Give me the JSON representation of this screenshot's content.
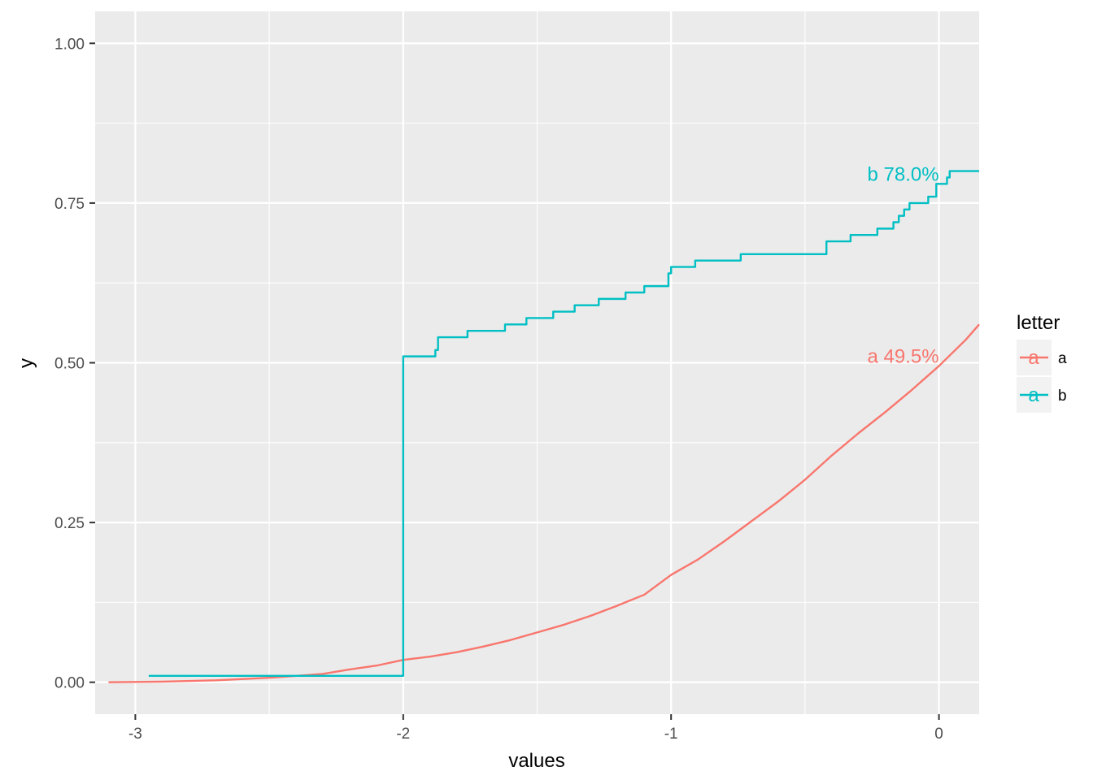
{
  "chart_data": {
    "type": "line",
    "step": true,
    "xlabel": "values",
    "ylabel": "y",
    "xlim": [
      -3.15,
      0.15
    ],
    "ylim": [
      -0.05,
      1.05
    ],
    "x_ticks": [
      -3,
      -2,
      -1,
      0
    ],
    "x_tick_labels": [
      "-3",
      "-2",
      "-1",
      "0"
    ],
    "y_ticks": [
      0,
      0.25,
      0.5,
      0.75,
      1.0
    ],
    "y_tick_labels": [
      "0.00",
      "0.25",
      "0.50",
      "0.75",
      "1.00"
    ],
    "grid": true,
    "legend": {
      "title": "letter",
      "position": "right",
      "key_glyph": "a",
      "entries": [
        {
          "label": "a",
          "color": "#F8766D"
        },
        {
          "label": "b",
          "color": "#00BFC4"
        }
      ]
    },
    "annotations": [
      {
        "text": "a 49.5%",
        "x": 0,
        "y": 0.51,
        "color": "#F8766D"
      },
      {
        "text": "b 78.0%",
        "x": 0,
        "y": 0.795,
        "color": "#00BFC4"
      }
    ],
    "series": [
      {
        "name": "a",
        "color": "#F8766D",
        "curve": "smooth",
        "x": [
          -3.1,
          -2.9,
          -2.7,
          -2.5,
          -2.3,
          -2.2,
          -2.1,
          -2.0,
          -1.9,
          -1.8,
          -1.7,
          -1.6,
          -1.5,
          -1.4,
          -1.3,
          -1.2,
          -1.1,
          -1.0,
          -0.9,
          -0.8,
          -0.7,
          -0.6,
          -0.5,
          -0.4,
          -0.3,
          -0.2,
          -0.1,
          0.0,
          0.1,
          0.15
        ],
        "y": [
          0.0,
          0.001,
          0.003,
          0.007,
          0.013,
          0.02,
          0.026,
          0.035,
          0.04,
          0.047,
          0.056,
          0.066,
          0.078,
          0.09,
          0.104,
          0.12,
          0.137,
          0.168,
          0.192,
          0.221,
          0.252,
          0.283,
          0.317,
          0.355,
          0.39,
          0.423,
          0.458,
          0.495,
          0.536,
          0.56
        ]
      },
      {
        "name": "b",
        "color": "#00BFC4",
        "curve": "step",
        "x": [
          -2.95,
          -2.0,
          -1.88,
          -1.87,
          -1.76,
          -1.62,
          -1.54,
          -1.44,
          -1.36,
          -1.27,
          -1.17,
          -1.1,
          -1.01,
          -1.0,
          -0.91,
          -0.74,
          -0.42,
          -0.33,
          -0.23,
          -0.17,
          -0.15,
          -0.13,
          -0.11,
          -0.06,
          -0.04,
          -0.01,
          0.03,
          0.04,
          0.15
        ],
        "y": [
          0.01,
          0.51,
          0.52,
          0.54,
          0.55,
          0.56,
          0.57,
          0.58,
          0.59,
          0.6,
          0.61,
          0.62,
          0.64,
          0.65,
          0.66,
          0.67,
          0.69,
          0.7,
          0.71,
          0.72,
          0.73,
          0.74,
          0.75,
          0.75,
          0.76,
          0.78,
          0.79,
          0.8,
          0.8
        ]
      }
    ]
  }
}
